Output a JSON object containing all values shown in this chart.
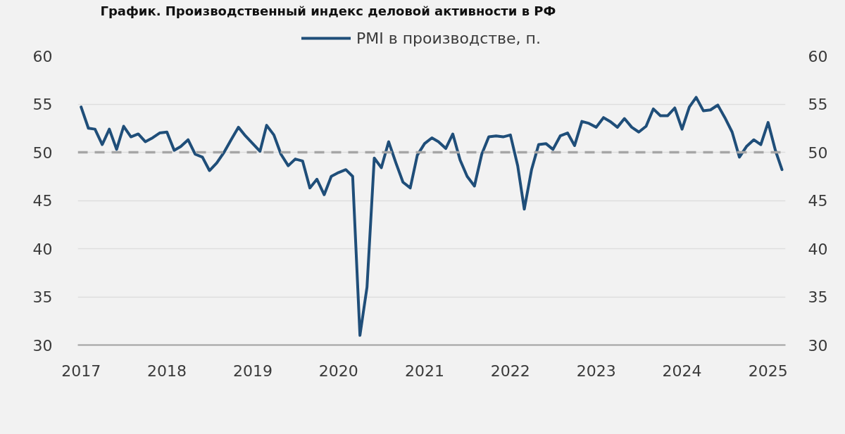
{
  "chart_data": {
    "type": "line",
    "title": "График. Производственный индекс деловой активности в РФ",
    "x": [
      "2017-01",
      "2017-02",
      "2017-03",
      "2017-04",
      "2017-05",
      "2017-06",
      "2017-07",
      "2017-08",
      "2017-09",
      "2017-10",
      "2017-11",
      "2017-12",
      "2018-01",
      "2018-02",
      "2018-03",
      "2018-04",
      "2018-05",
      "2018-06",
      "2018-07",
      "2018-08",
      "2018-09",
      "2018-10",
      "2018-11",
      "2018-12",
      "2019-01",
      "2019-02",
      "2019-03",
      "2019-04",
      "2019-05",
      "2019-06",
      "2019-07",
      "2019-08",
      "2019-09",
      "2019-10",
      "2019-11",
      "2019-12",
      "2020-01",
      "2020-02",
      "2020-03",
      "2020-04",
      "2020-05",
      "2020-06",
      "2020-07",
      "2020-08",
      "2020-09",
      "2020-10",
      "2020-11",
      "2020-12",
      "2021-01",
      "2021-02",
      "2021-03",
      "2021-04",
      "2021-05",
      "2021-06",
      "2021-07",
      "2021-08",
      "2021-09",
      "2021-10",
      "2021-11",
      "2021-12",
      "2022-01",
      "2022-02",
      "2022-03",
      "2022-04",
      "2022-05",
      "2022-06",
      "2022-07",
      "2022-08",
      "2022-09",
      "2022-10",
      "2022-11",
      "2022-12",
      "2023-01",
      "2023-02",
      "2023-03",
      "2023-04",
      "2023-05",
      "2023-06",
      "2023-07",
      "2023-08",
      "2023-09",
      "2023-10",
      "2023-11",
      "2023-12",
      "2024-01",
      "2024-02",
      "2024-03",
      "2024-04",
      "2024-05",
      "2024-06",
      "2024-07",
      "2024-08",
      "2024-09",
      "2024-10",
      "2024-11",
      "2024-12",
      "2025-01",
      "2025-02",
      "2025-03"
    ],
    "series": [
      {
        "name": "PMI в производстве, п.",
        "color": "#1f4e79",
        "values": [
          54.7,
          52.5,
          52.4,
          50.8,
          52.4,
          50.3,
          52.7,
          51.6,
          51.9,
          51.1,
          51.5,
          52.0,
          52.1,
          50.2,
          50.6,
          51.3,
          49.8,
          49.5,
          48.1,
          48.9,
          50.0,
          51.3,
          52.6,
          51.7,
          50.9,
          50.1,
          52.8,
          51.8,
          49.8,
          48.6,
          49.3,
          49.1,
          46.3,
          47.2,
          45.6,
          47.5,
          47.9,
          48.2,
          47.5,
          31.0,
          36.0,
          49.4,
          48.4,
          51.1,
          48.9,
          46.9,
          46.3,
          49.7,
          50.9,
          51.5,
          51.1,
          50.4,
          51.9,
          49.2,
          47.5,
          46.5,
          49.8,
          51.6,
          51.7,
          51.6,
          51.8,
          48.6,
          44.1,
          48.2,
          50.8,
          50.9,
          50.3,
          51.7,
          52.0,
          50.7,
          53.2,
          53.0,
          52.6,
          53.6,
          53.2,
          52.6,
          53.5,
          52.6,
          52.1,
          52.7,
          54.5,
          53.8,
          53.8,
          54.6,
          52.4,
          54.7,
          55.7,
          54.3,
          54.4,
          54.9,
          53.6,
          52.1,
          49.5,
          50.6,
          51.3,
          50.8,
          53.1,
          50.2,
          48.2
        ]
      }
    ],
    "xlim": [
      "2016-12-18",
      "2025-03-16"
    ],
    "xticks": [
      {
        "value": "2017-01",
        "label": "2017"
      },
      {
        "value": "2018-01",
        "label": "2018"
      },
      {
        "value": "2019-01",
        "label": "2019"
      },
      {
        "value": "2020-01",
        "label": "2020"
      },
      {
        "value": "2021-01",
        "label": "2021"
      },
      {
        "value": "2022-01",
        "label": "2022"
      },
      {
        "value": "2023-01",
        "label": "2023"
      },
      {
        "value": "2024-01",
        "label": "2024"
      },
      {
        "value": "2025-01",
        "label": "2025"
      }
    ],
    "ylim": [
      30,
      60
    ],
    "yticks": [
      30,
      35,
      40,
      45,
      50,
      55,
      60
    ],
    "y2lim": [
      30,
      60
    ],
    "y2ticks": [
      30,
      35,
      40,
      45,
      50,
      55,
      60
    ],
    "ref_lines": [
      {
        "axis": "y",
        "value": 50,
        "color": "#a6a6a6",
        "line_style": "dashed"
      }
    ],
    "grid": "y",
    "legend": "top"
  }
}
